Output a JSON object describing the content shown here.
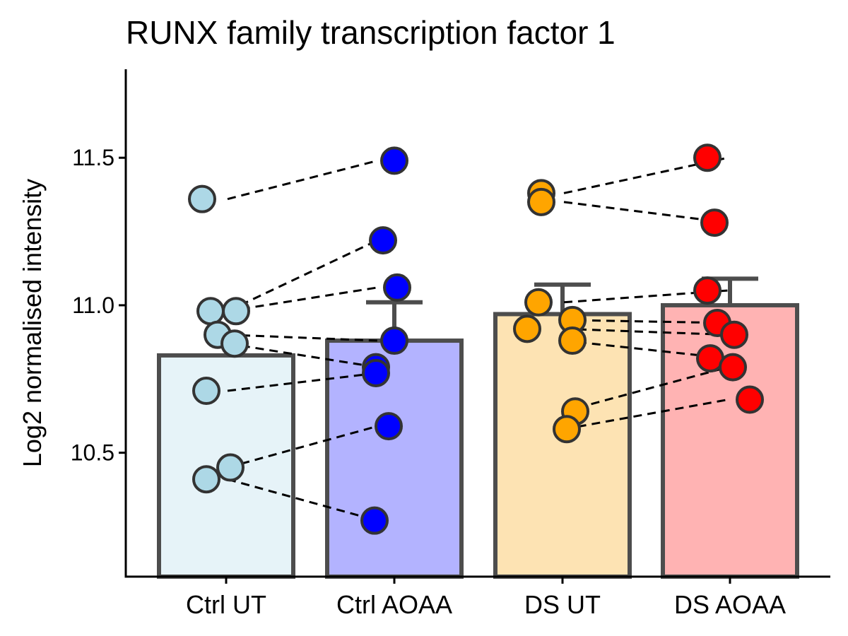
{
  "chart_data": {
    "type": "bar",
    "title": "RUNX family transcription factor 1",
    "xlabel": "",
    "ylabel": "Log2 normalised intensity",
    "ylim": [
      10.08,
      11.8
    ],
    "yticks": [
      10.5,
      11.0,
      11.5
    ],
    "ytick_labels": [
      "10.5",
      "11.0",
      "11.5"
    ],
    "grid": false,
    "legend": "none",
    "categories": [
      "Ctrl UT",
      "Ctrl AOAA",
      "DS UT",
      "DS AOAA"
    ],
    "bar_fill_colors": [
      "#e6f3f8",
      "#b3b3ff",
      "#fde3b3",
      "#ffb3b3"
    ],
    "point_colors": [
      "#add8e6",
      "#0000ff",
      "#ffa500",
      "#ff0000"
    ],
    "bar_outline_color": "#4d4d4d",
    "point_outline_color": "#333333",
    "values": [
      10.83,
      10.88,
      10.97,
      11.0
    ],
    "error_upper": [
      null,
      11.01,
      11.07,
      11.09
    ],
    "points": [
      [
        11.36,
        10.98,
        10.98,
        10.9,
        10.87,
        10.71,
        10.41,
        10.45
      ],
      [
        11.49,
        11.22,
        11.06,
        10.88,
        10.79,
        10.77,
        10.59,
        10.27
      ],
      [
        11.38,
        11.35,
        11.01,
        10.95,
        10.92,
        10.88,
        10.64,
        10.58
      ],
      [
        11.5,
        11.28,
        11.05,
        10.94,
        10.9,
        10.82,
        10.79,
        10.68
      ]
    ],
    "pairs": [
      {
        "from": [
          0,
          11.36
        ],
        "to": [
          1,
          11.49
        ]
      },
      {
        "from": [
          0,
          10.98
        ],
        "to": [
          1,
          11.22
        ]
      },
      {
        "from": [
          0,
          10.98
        ],
        "to": [
          1,
          11.06
        ]
      },
      {
        "from": [
          0,
          10.9
        ],
        "to": [
          1,
          10.88
        ]
      },
      {
        "from": [
          0,
          10.87
        ],
        "to": [
          1,
          10.79
        ]
      },
      {
        "from": [
          0,
          10.71
        ],
        "to": [
          1,
          10.77
        ]
      },
      {
        "from": [
          0,
          10.45
        ],
        "to": [
          1,
          10.59
        ]
      },
      {
        "from": [
          0,
          10.41
        ],
        "to": [
          1,
          10.27
        ]
      },
      {
        "from": [
          2,
          11.38
        ],
        "to": [
          3,
          11.5
        ]
      },
      {
        "from": [
          2,
          11.35
        ],
        "to": [
          3,
          11.28
        ]
      },
      {
        "from": [
          2,
          11.01
        ],
        "to": [
          3,
          11.05
        ]
      },
      {
        "from": [
          2,
          10.95
        ],
        "to": [
          3,
          10.94
        ]
      },
      {
        "from": [
          2,
          10.92
        ],
        "to": [
          3,
          10.9
        ]
      },
      {
        "from": [
          2,
          10.88
        ],
        "to": [
          3,
          10.82
        ]
      },
      {
        "from": [
          2,
          10.64
        ],
        "to": [
          3,
          10.79
        ]
      },
      {
        "from": [
          2,
          10.58
        ],
        "to": [
          3,
          10.68
        ]
      }
    ]
  }
}
